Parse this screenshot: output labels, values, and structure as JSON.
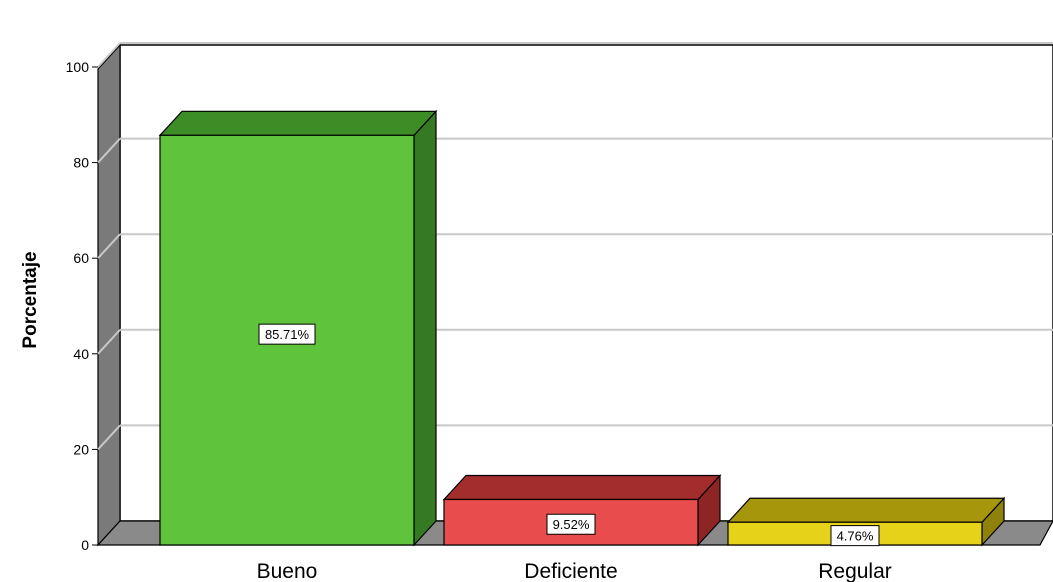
{
  "chart_data": {
    "type": "bar",
    "style": "3d",
    "title": "",
    "xlabel": "",
    "ylabel": "Porcentaje",
    "ylim": [
      0,
      100
    ],
    "yticks": [
      0,
      20,
      40,
      60,
      80,
      100
    ],
    "grid": true,
    "categories": [
      "Bueno",
      "Deficiente",
      "Regular"
    ],
    "values": [
      85.71,
      9.52,
      4.76
    ],
    "data_labels": [
      "85.71%",
      "9.52%",
      "4.76%"
    ],
    "colors": {
      "front": [
        "#5fc43b",
        "#e84c4c",
        "#e6d319"
      ],
      "top": [
        "#3d8d26",
        "#a32c2c",
        "#a6960c"
      ],
      "side": [
        "#357a22",
        "#8e2525",
        "#8f820b"
      ],
      "wall": "#ffffff",
      "wall_side": "#7a7a7a",
      "floor": "#8a8a8a",
      "grid": "#c8c8c8"
    }
  }
}
